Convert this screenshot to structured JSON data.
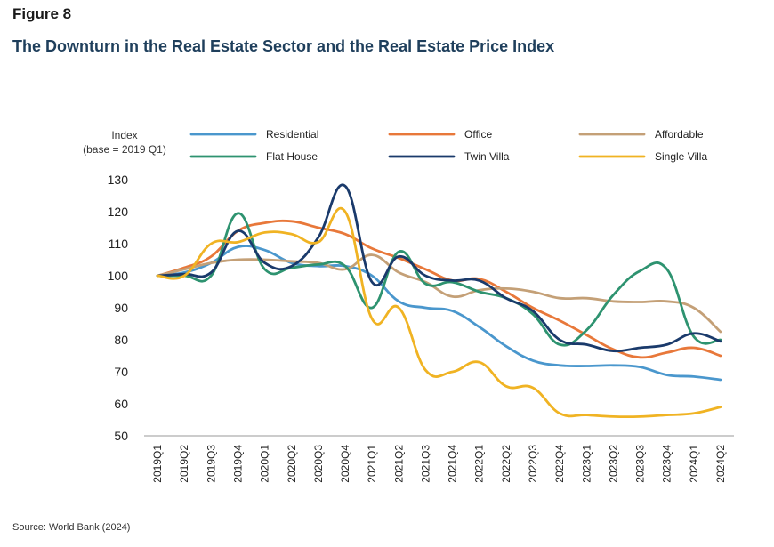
{
  "figure_label": "Figure 8",
  "title": "The Downturn in the Real Estate Sector and the Real Estate Price Index",
  "source": "Source: World Bank (2024)",
  "chart_data": {
    "type": "line",
    "ylabel_line1": "Index",
    "ylabel_line2": "(base = 2019 Q1)",
    "xlabel": "",
    "ylim": [
      50,
      130
    ],
    "yticks": [
      50,
      60,
      70,
      80,
      90,
      100,
      110,
      120,
      130
    ],
    "grid": false,
    "legend_position": "top",
    "x": [
      "2019Q1",
      "2019Q2",
      "2019Q3",
      "2019Q4",
      "2020Q1",
      "2020Q2",
      "2020Q3",
      "2020Q4",
      "2021Q1",
      "2021Q2",
      "2021Q3",
      "2021Q4",
      "2022Q1",
      "2022Q2",
      "2022Q3",
      "2022Q4",
      "2023Q1",
      "2023Q2",
      "2023Q3",
      "2023Q4",
      "2024Q1",
      "2024Q2"
    ],
    "series": [
      {
        "name": "Residential",
        "color": "#4a97cd",
        "values": [
          100,
          101,
          104,
          109,
          108,
          104,
          103,
          103,
          100,
          92,
          90,
          89,
          84,
          78,
          73.5,
          72,
          71.8,
          72,
          71.5,
          69,
          68.5,
          67.5
        ]
      },
      {
        "name": "Office",
        "color": "#e8783a",
        "values": [
          100,
          102.5,
          106,
          114,
          116.5,
          117,
          115,
          113,
          108.5,
          105.5,
          102,
          98.5,
          99,
          95,
          90,
          86,
          81.5,
          77,
          74.5,
          76,
          77.5,
          75
        ]
      },
      {
        "name": "Affordable",
        "color": "#c4a077",
        "values": [
          100,
          102,
          104,
          105,
          105,
          104.5,
          104,
          102,
          106.5,
          101,
          98,
          93.5,
          95.5,
          96,
          95,
          93,
          93,
          92,
          91.8,
          92,
          90,
          82.5
        ]
      },
      {
        "name": "Flat House",
        "color": "#2e9370",
        "values": [
          100,
          100,
          100,
          119.5,
          102,
          102.5,
          103.5,
          103,
          90,
          107.5,
          97.5,
          98,
          95,
          93,
          88,
          78.5,
          83,
          94,
          101.5,
          102,
          81,
          80
        ]
      },
      {
        "name": "Twin Villa",
        "color": "#1a3a6b",
        "values": [
          100,
          100.5,
          101,
          114,
          104,
          103,
          112,
          128,
          98,
          106,
          100,
          98.5,
          98.5,
          93,
          89,
          80,
          78.5,
          76.5,
          77.5,
          78.5,
          82,
          79.5
        ]
      },
      {
        "name": "Single Villa",
        "color": "#f0b323",
        "values": [
          100,
          100,
          110,
          110.5,
          113.5,
          113,
          110.5,
          120,
          86.5,
          90,
          70.5,
          70,
          73,
          65.5,
          65,
          57,
          56.5,
          56,
          56,
          56.5,
          57,
          59
        ]
      }
    ]
  }
}
